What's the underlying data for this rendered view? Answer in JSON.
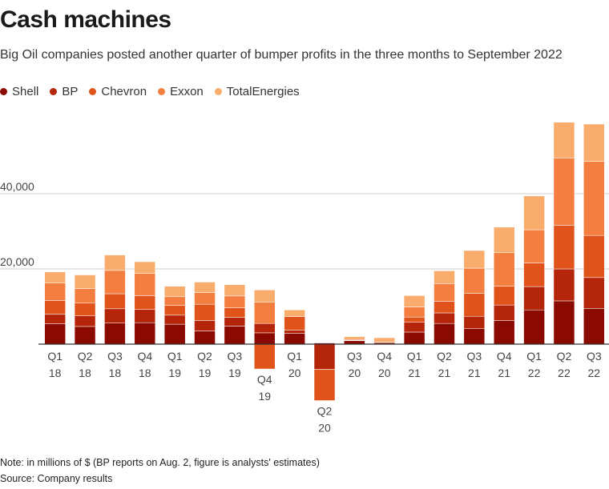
{
  "title": "Cash machines",
  "subtitle": "Big Oil companies posted another quarter of bumper profits in the three months to September 2022",
  "note": "Note: in millions of $ (BP reports on Aug. 2, figure is analysts' estimates)",
  "source": "Source: Company results",
  "chart_data": {
    "type": "bar",
    "stacked": true,
    "categories": [
      [
        "Q1",
        "18"
      ],
      [
        "Q2",
        "18"
      ],
      [
        "Q3",
        "18"
      ],
      [
        "Q4",
        "18"
      ],
      [
        "Q1",
        "19"
      ],
      [
        "Q2",
        "19"
      ],
      [
        "Q3",
        "19"
      ],
      [
        "Q4",
        "19"
      ],
      [
        "Q1",
        "20"
      ],
      [
        "Q2",
        "20"
      ],
      [
        "Q3",
        "20"
      ],
      [
        "Q4",
        "20"
      ],
      [
        "Q1",
        "21"
      ],
      [
        "Q2",
        "21"
      ],
      [
        "Q3",
        "21"
      ],
      [
        "Q4",
        "21"
      ],
      [
        "Q1",
        "22"
      ],
      [
        "Q2",
        "22"
      ],
      [
        "Q3",
        "22"
      ]
    ],
    "series": [
      {
        "name": "Shell",
        "color": "#8b0a00",
        "values": [
          5400,
          4700,
          5600,
          5700,
          5300,
          3500,
          4800,
          3000,
          2900,
          300,
          900,
          400,
          3200,
          5500,
          4100,
          6300,
          9100,
          11500,
          9500
        ]
      },
      {
        "name": "BP",
        "color": "#b5250a",
        "values": [
          2600,
          2800,
          3800,
          3500,
          2400,
          2800,
          2300,
          2500,
          800,
          -6700,
          100,
          100,
          2600,
          2800,
          3300,
          4100,
          6200,
          8500,
          8200
        ]
      },
      {
        "name": "Chevron",
        "color": "#e0541c",
        "values": [
          3600,
          3400,
          4000,
          3700,
          2600,
          4300,
          2600,
          -6600,
          3600,
          -8300,
          200,
          0,
          1400,
          3100,
          6100,
          5000,
          6300,
          11600,
          11200
        ]
      },
      {
        "name": "Exxon",
        "color": "#f47e3f",
        "values": [
          4700,
          3900,
          6200,
          5900,
          2300,
          3100,
          3100,
          5700,
          0,
          0,
          0,
          0,
          2700,
          4700,
          6700,
          8900,
          8800,
          17900,
          19700
        ]
      },
      {
        "name": "TotalEnergies",
        "color": "#f9ac6c",
        "values": [
          2900,
          3600,
          4100,
          3100,
          2800,
          2800,
          3000,
          3200,
          1800,
          0,
          800,
          1200,
          3000,
          3400,
          4700,
          6800,
          9000,
          9500,
          9900
        ]
      }
    ],
    "ylim": [
      -15000,
      60000
    ],
    "yticks": [
      20000,
      40000
    ],
    "ytick_labels": [
      "20,000",
      "40,000"
    ],
    "grid": true,
    "legend": "top-left"
  }
}
